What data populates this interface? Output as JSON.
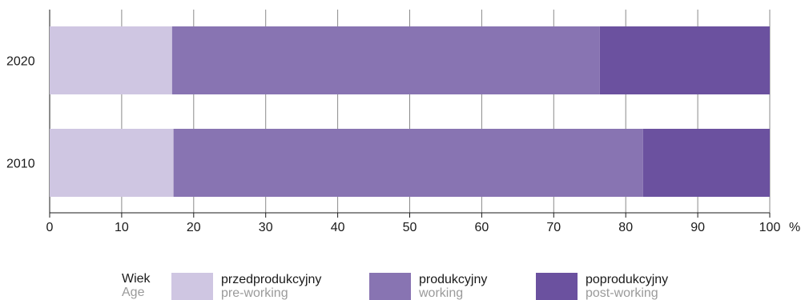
{
  "chart_data": {
    "type": "bar",
    "orientation": "horizontal",
    "stacked": true,
    "categories": [
      "2020",
      "2010"
    ],
    "series": [
      {
        "name": "przedprodukcyjny",
        "name_en": "pre-working",
        "color": "#cfc6e2",
        "values": [
          17.0,
          17.2
        ]
      },
      {
        "name": "produkcyjny",
        "name_en": "working",
        "color": "#8874b2",
        "values": [
          59.4,
          65.2
        ]
      },
      {
        "name": "poprodukcyjny",
        "name_en": "post-working",
        "color": "#6b519f",
        "values": [
          23.6,
          17.6
        ]
      }
    ],
    "xlim": [
      0,
      100
    ],
    "xticks": [
      0,
      10,
      20,
      30,
      40,
      50,
      60,
      70,
      80,
      90,
      100
    ],
    "xunit": "%",
    "grid": "vertical"
  },
  "legend": {
    "title_pl": "Wiek",
    "title_en": "Age",
    "items": [
      {
        "label_pl": "przedprodukcyjny",
        "label_en": "pre-working"
      },
      {
        "label_pl": "produkcyjny",
        "label_en": "working"
      },
      {
        "label_pl": "poprodukcyjny",
        "label_en": "post-working"
      }
    ]
  }
}
